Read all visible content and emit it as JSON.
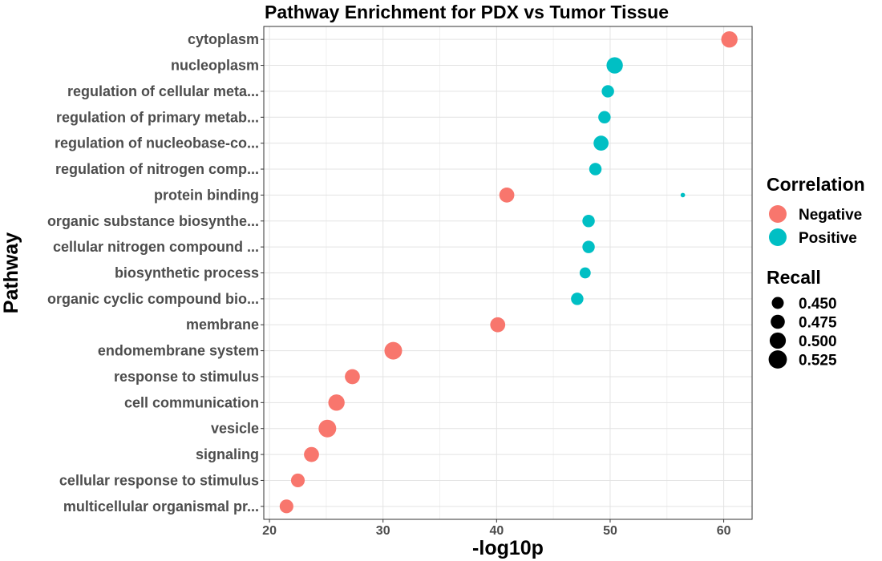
{
  "chart_data": {
    "type": "scatter",
    "title": "Pathway Enrichment for PDX vs Tumor Tissue",
    "xlabel": "-log10p",
    "ylabel": "Pathway",
    "xlim": [
      19.5,
      62.5
    ],
    "xticks": [
      20,
      30,
      40,
      50,
      60
    ],
    "grid": true,
    "legend_position": "right",
    "colors": {
      "Negative": "#f8766d",
      "Positive": "#00bfc4"
    },
    "categories": [
      "cytoplasm",
      "nucleoplasm",
      "regulation of cellular meta...",
      "regulation of primary metab...",
      "regulation of nucleobase-co...",
      "regulation of nitrogen comp...",
      "protein binding",
      "organic substance biosynthe...",
      "cellular nitrogen compound ...",
      "biosynthetic process",
      "organic cyclic compound bio...",
      "membrane",
      "endomembrane system",
      "response to stimulus",
      "cell communication",
      "vesicle",
      "signaling",
      "cellular response to stimulus",
      "multicellular organismal pr..."
    ],
    "points": [
      {
        "pathway": "cytoplasm",
        "x": 60.5,
        "correlation": "Negative",
        "recall": 0.52
      },
      {
        "pathway": "nucleoplasm",
        "x": 50.4,
        "correlation": "Positive",
        "recall": 0.52
      },
      {
        "pathway": "regulation of cellular meta...",
        "x": 49.8,
        "correlation": "Positive",
        "recall": 0.49
      },
      {
        "pathway": "regulation of primary metab...",
        "x": 49.5,
        "correlation": "Positive",
        "recall": 0.49
      },
      {
        "pathway": "regulation of nucleobase-co...",
        "x": 49.2,
        "correlation": "Positive",
        "recall": 0.51
      },
      {
        "pathway": "regulation of nitrogen comp...",
        "x": 48.7,
        "correlation": "Positive",
        "recall": 0.49
      },
      {
        "pathway": "protein binding",
        "x": 40.9,
        "correlation": "Negative",
        "recall": 0.51
      },
      {
        "pathway": "protein binding",
        "x": 56.4,
        "correlation": "Positive",
        "recall": 0.43
      },
      {
        "pathway": "organic substance biosynthe...",
        "x": 48.1,
        "correlation": "Positive",
        "recall": 0.49
      },
      {
        "pathway": "cellular nitrogen compound ...",
        "x": 48.1,
        "correlation": "Positive",
        "recall": 0.49
      },
      {
        "pathway": "biosynthetic process",
        "x": 47.8,
        "correlation": "Positive",
        "recall": 0.48
      },
      {
        "pathway": "organic cyclic compound bio...",
        "x": 47.1,
        "correlation": "Positive",
        "recall": 0.49
      },
      {
        "pathway": "membrane",
        "x": 40.1,
        "correlation": "Negative",
        "recall": 0.51
      },
      {
        "pathway": "endomembrane system",
        "x": 30.9,
        "correlation": "Negative",
        "recall": 0.53
      },
      {
        "pathway": "response to stimulus",
        "x": 27.3,
        "correlation": "Negative",
        "recall": 0.51
      },
      {
        "pathway": "cell communication",
        "x": 25.9,
        "correlation": "Negative",
        "recall": 0.52
      },
      {
        "pathway": "vesicle",
        "x": 25.1,
        "correlation": "Negative",
        "recall": 0.53
      },
      {
        "pathway": "signaling",
        "x": 23.7,
        "correlation": "Negative",
        "recall": 0.51
      },
      {
        "pathway": "cellular response to stimulus",
        "x": 22.5,
        "correlation": "Negative",
        "recall": 0.5
      },
      {
        "pathway": "multicellular organismal pr...",
        "x": 21.5,
        "correlation": "Negative",
        "recall": 0.5
      }
    ],
    "legend": {
      "color_title": "Correlation",
      "color_entries": [
        {
          "label": "Negative",
          "key": "Negative"
        },
        {
          "label": "Positive",
          "key": "Positive"
        }
      ],
      "size_title": "Recall",
      "size_entries": [
        {
          "label": "0.450",
          "value": 0.45
        },
        {
          "label": "0.475",
          "value": 0.475
        },
        {
          "label": "0.500",
          "value": 0.5
        },
        {
          "label": "0.525",
          "value": 0.525
        }
      ]
    }
  }
}
